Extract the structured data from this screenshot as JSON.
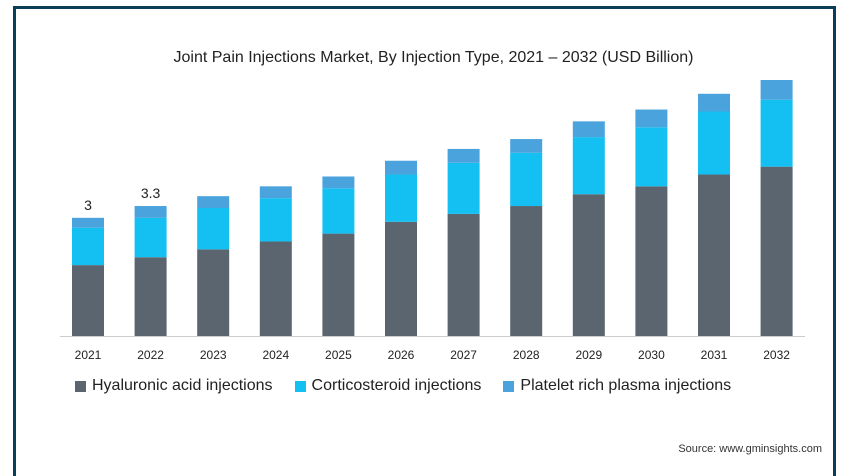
{
  "chart_data": {
    "type": "bar",
    "stacked": true,
    "title": "Joint Pain Injections Market, By Injection Type, 2021 – 2032 (USD Billion)",
    "categories": [
      "2021",
      "2022",
      "2023",
      "2024",
      "2025",
      "2026",
      "2027",
      "2028",
      "2029",
      "2030",
      "2031",
      "2032"
    ],
    "series": [
      {
        "name": "Hyaluronic acid injections",
        "color": "#5a6570",
        "values": [
          1.8,
          2.0,
          2.2,
          2.4,
          2.6,
          2.9,
          3.1,
          3.3,
          3.6,
          3.8,
          4.1,
          4.3
        ]
      },
      {
        "name": "Corticosteroid injections",
        "color": "#14c0f2",
        "values": [
          0.95,
          1.0,
          1.05,
          1.1,
          1.15,
          1.2,
          1.3,
          1.35,
          1.45,
          1.5,
          1.6,
          1.7
        ]
      },
      {
        "name": "Platelet rich plasma injections",
        "color": "#4aa3dc",
        "values": [
          0.25,
          0.3,
          0.3,
          0.3,
          0.3,
          0.35,
          0.35,
          0.35,
          0.4,
          0.45,
          0.45,
          0.5
        ]
      }
    ],
    "data_labels": [
      {
        "category": "2021",
        "text": "3"
      },
      {
        "category": "2022",
        "text": "3.3"
      }
    ],
    "ylim": [
      0,
      6.5
    ],
    "grid": false,
    "legend": "bottom"
  },
  "source": "Source: www.gminsights.com"
}
